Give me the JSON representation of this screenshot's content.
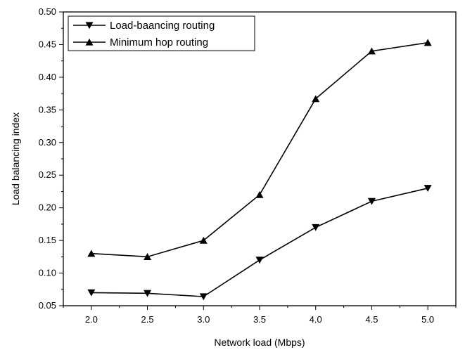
{
  "chart_data": {
    "type": "line",
    "title": "",
    "xlabel": "Network load (Mbps)",
    "ylabel": "Load balancing index",
    "xlim": [
      1.75,
      5.25
    ],
    "ylim": [
      0.05,
      0.5
    ],
    "x_ticks": [
      "2.0",
      "2.5",
      "3.0",
      "3.5",
      "4.0",
      "4.5",
      "5.0"
    ],
    "y_ticks": [
      "0.05",
      "0.10",
      "0.15",
      "0.20",
      "0.25",
      "0.30",
      "0.35",
      "0.40",
      "0.45",
      "0.50"
    ],
    "x": [
      2.0,
      2.5,
      3.0,
      3.5,
      4.0,
      4.5,
      5.0
    ],
    "legend_position": "top-left",
    "grid": false,
    "series": [
      {
        "name": "Load-baancing routing",
        "marker": "triangle-down",
        "color": "#000000",
        "values": [
          0.07,
          0.069,
          0.064,
          0.12,
          0.17,
          0.21,
          0.23
        ]
      },
      {
        "name": "Minimum hop routing",
        "marker": "triangle-up",
        "color": "#000000",
        "values": [
          0.13,
          0.125,
          0.15,
          0.22,
          0.367,
          0.44,
          0.453
        ]
      }
    ]
  }
}
